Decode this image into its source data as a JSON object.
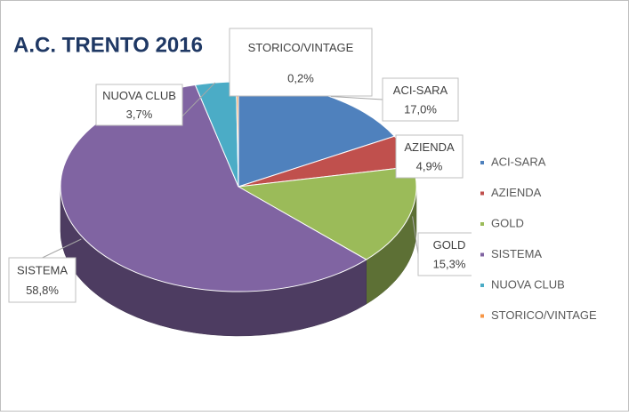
{
  "chart_data": {
    "type": "pie",
    "title": "A.C. TRENTO 2016",
    "categories": [
      "ACI-SARA",
      "AZIENDA",
      "GOLD",
      "SISTEMA",
      "NUOVA CLUB",
      "STORICO/VINTAGE"
    ],
    "values": [
      17.0,
      4.9,
      15.3,
      58.8,
      3.7,
      0.2
    ],
    "value_labels": [
      "17,0%",
      "4,9%",
      "15,3%",
      "58,8%",
      "3,7%",
      "0,2%"
    ],
    "colors": [
      "#4f81bd",
      "#c0504d",
      "#9bbb59",
      "#8064a2",
      "#4bacc6",
      "#f79646"
    ],
    "legend": "right"
  }
}
